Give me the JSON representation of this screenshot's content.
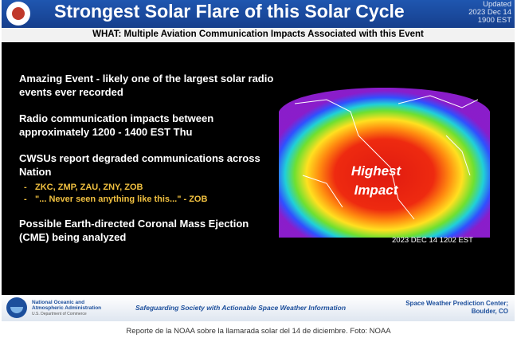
{
  "header": {
    "title": "Strongest Solar Flare of this Solar Cycle",
    "updated_label": "Updated",
    "updated_date": "2023 Dec 14",
    "updated_time": "1900 EST"
  },
  "subtitle": "WHAT: Multiple Aviation Communication Impacts Associated with this Event",
  "bullets": [
    {
      "text": "Amazing Event - likely one of the largest solar radio events ever recorded"
    },
    {
      "text": "Radio communication impacts between approximately 1200 - 1400 EST Thu"
    },
    {
      "text": "CWSUs report degraded communications across Nation"
    },
    {
      "text": "Possible Earth-directed Coronal Mass Ejection (CME) being analyzed"
    }
  ],
  "sub_bullets": [
    {
      "dash": "-",
      "text": "ZKC, ZMP, ZAU, ZNY, ZOB"
    },
    {
      "dash": "-",
      "text": "\"... Never seen anything like this...\" - ZOB"
    }
  ],
  "map": {
    "impact_label_1": "Highest",
    "impact_label_2": "Impact",
    "timestamp": "2023 DEC 14 1202 EST"
  },
  "footer": {
    "noaa_name_1": "National Oceanic and",
    "noaa_name_2": "Atmospheric Administration",
    "noaa_dept": "U.S. Department of Commerce",
    "tagline": "Safeguarding Society with Actionable Space Weather Information",
    "swpc_1": "Space Weather Prediction Center;",
    "swpc_2": "Boulder, CO"
  },
  "caption": "Reporte de la NOAA sobre la llamarada solar del 14 de diciembre. Foto: NOAA",
  "colors": {
    "header_blue": "#1f56b0",
    "sub_bullet_yellow": "#f0c040",
    "noaa_blue": "#1d4f9c",
    "impact_core": "#e01a10"
  }
}
